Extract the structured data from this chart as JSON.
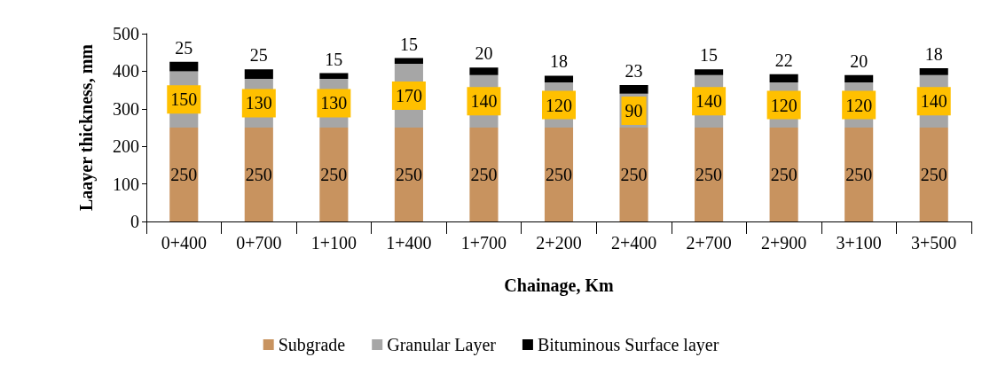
{
  "chart_data": {
    "type": "bar",
    "stacked": true,
    "xlabel": "Chainage, Km",
    "ylabel": "Laayer thickness, mm",
    "categories": [
      "0+400",
      "0+700",
      "1+100",
      "1+400",
      "1+700",
      "2+200",
      "2+400",
      "2+700",
      "2+900",
      "3+100",
      "3+500"
    ],
    "series": [
      {
        "name": "Subgrade",
        "color": "#c8935f",
        "values": [
          250,
          250,
          250,
          250,
          250,
          250,
          250,
          250,
          250,
          250,
          250
        ]
      },
      {
        "name": "Granular Layer",
        "color": "#a6a6a6",
        "values": [
          150,
          130,
          130,
          170,
          140,
          120,
          90,
          140,
          120,
          120,
          140
        ]
      },
      {
        "name": "Bituminous Surface layer",
        "color": "#000000",
        "values": [
          25,
          25,
          15,
          15,
          20,
          18,
          23,
          15,
          22,
          20,
          18
        ]
      }
    ],
    "ylim": [
      0,
      500
    ],
    "yticks": [
      0,
      100,
      200,
      300,
      400,
      500
    ],
    "grid": false,
    "legend": "bottom",
    "data_labels": true
  }
}
